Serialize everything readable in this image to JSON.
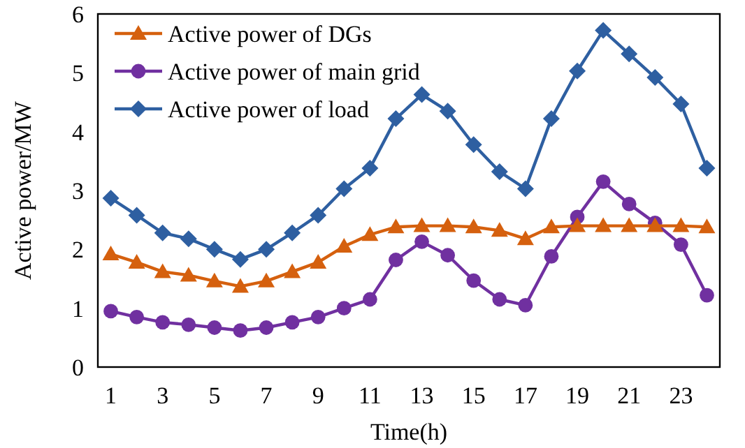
{
  "chart_data": {
    "type": "line",
    "xlabel": "Time(h)",
    "ylabel": "Active power/MW",
    "x": [
      1,
      2,
      3,
      4,
      5,
      6,
      7,
      8,
      9,
      10,
      11,
      12,
      13,
      14,
      15,
      16,
      17,
      18,
      19,
      20,
      21,
      22,
      23,
      24
    ],
    "xlim": [
      0.5,
      24.5
    ],
    "xticks": [
      1,
      3,
      5,
      7,
      9,
      11,
      13,
      15,
      17,
      19,
      21,
      23
    ],
    "ylim": [
      0,
      6
    ],
    "yticks": [
      0,
      1,
      2,
      3,
      4,
      5,
      6
    ],
    "grid": false,
    "legend": "top left",
    "line_style": "solid",
    "series": [
      {
        "name": "Active power of DGs",
        "color": "#d5600e",
        "marker": "triangle",
        "values": [
          1.92,
          1.78,
          1.62,
          1.56,
          1.46,
          1.37,
          1.46,
          1.62,
          1.78,
          2.05,
          2.25,
          2.38,
          2.4,
          2.4,
          2.38,
          2.32,
          2.18,
          2.38,
          2.4,
          2.4,
          2.4,
          2.4,
          2.4,
          2.38
        ]
      },
      {
        "name": "Active power of main grid",
        "color": "#7030a0",
        "marker": "circle",
        "values": [
          0.95,
          0.85,
          0.76,
          0.72,
          0.67,
          0.62,
          0.67,
          0.76,
          0.85,
          1.0,
          1.15,
          1.82,
          2.13,
          1.9,
          1.47,
          1.15,
          1.05,
          1.88,
          2.55,
          3.15,
          2.77,
          2.45,
          2.08,
          1.22
        ]
      },
      {
        "name": "Active power of load",
        "color": "#2e5fa1",
        "marker": "diamond",
        "values": [
          2.87,
          2.58,
          2.28,
          2.18,
          2.0,
          1.83,
          2.0,
          2.28,
          2.58,
          3.03,
          3.38,
          4.22,
          4.63,
          4.35,
          3.78,
          3.32,
          3.03,
          4.22,
          5.03,
          5.72,
          5.32,
          4.92,
          4.47,
          3.38
        ]
      }
    ]
  }
}
